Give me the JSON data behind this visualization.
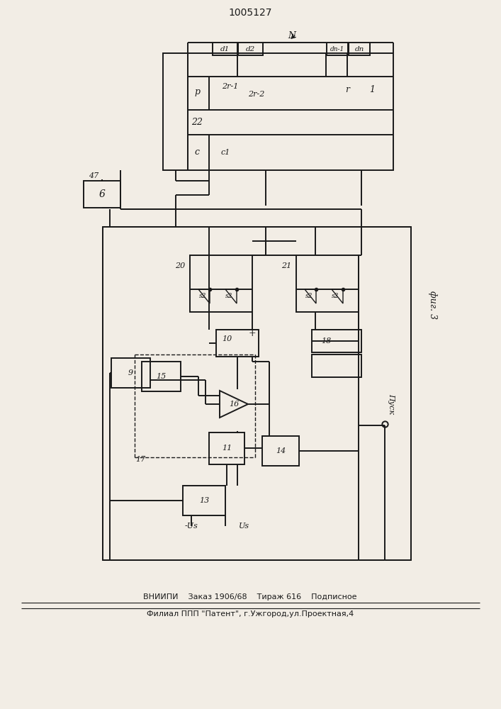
{
  "title": "1005127",
  "bg_color": "#f2ede5",
  "line_color": "#1a1a1a",
  "footer_line1": "ВНИИПИ    Заказ 1906/68    Тираж 616    Подписное",
  "footer_line2": "Филиал ППП \"Патент\", г.Ужгород,ул.Проектная,4",
  "fig3_label": "фиг. 3",
  "pusk_label": "Пуск",
  "label_n": "N",
  "label_17": "17",
  "label_6": "6",
  "label_47": "47",
  "label_20": "20",
  "label_21": "21",
  "label_10": "10",
  "label_18": "18",
  "label_9": "9",
  "label_16": "16",
  "label_15": "15",
  "label_11": "11",
  "label_14": "14",
  "label_13": "13",
  "label_minus_us": "-Us",
  "label_us": "Us",
  "label_22": "22",
  "label_p": "p",
  "label_2r1": "2r-1",
  "label_2r2": "2r-2",
  "label_r": "r",
  "label_1": "1",
  "label_d1": "d1",
  "label_d2": "d2",
  "label_dn1": "dn-1",
  "label_dn": "dn",
  "label_c": "c",
  "label_c1": "c1"
}
